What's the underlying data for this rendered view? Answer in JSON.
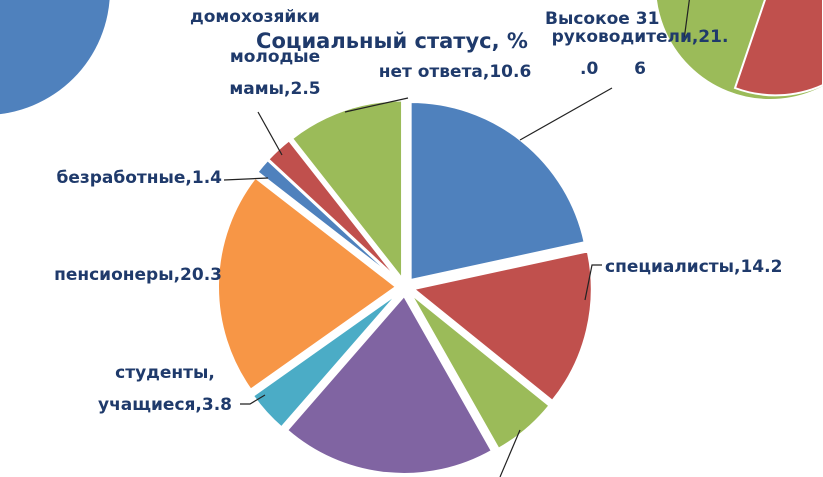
{
  "chart_data": {
    "type": "pie",
    "title": "Социальный статус, %",
    "categories": [
      "руководители",
      "специалисты",
      null,
      null,
      "студенты, учащиеся",
      "пенсионеры",
      "безработные",
      "молодые мамы",
      "нет ответа"
    ],
    "values": [
      21.6,
      14.2,
      6.0,
      19.6,
      3.8,
      20.3,
      1.4,
      2.5,
      10.6
    ],
    "value_labels": [
      "руководители,21.\n6",
      "специалисты,14.2",
      null,
      null,
      "студенты,\nучащиеся,3.8",
      "пенсионеры,20.3",
      "безработные,1.4",
      "молодые\nмамы,2.5",
      "нет ответа,10.6"
    ],
    "colors": [
      "#4f81bd",
      "#c0504d",
      "#9bbb59",
      "#8064a2",
      "#4bacc6",
      "#f79646",
      "#4f81bd",
      "#c0504d",
      "#9bbb59"
    ],
    "annotations": [
      "домохозяйки",
      "Высокое 31",
      ".0"
    ]
  }
}
